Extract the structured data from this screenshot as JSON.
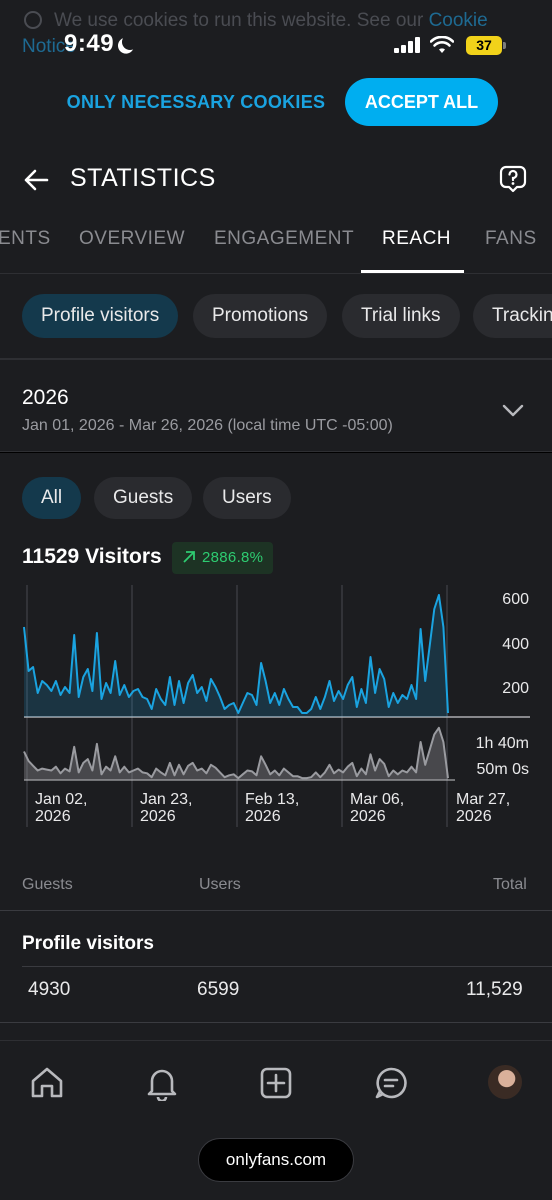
{
  "status_bar": {
    "time": "9:49",
    "battery": "37"
  },
  "cookie": {
    "text": "We use cookies to run this website. See our ",
    "link": "Cookie",
    "link2": "Notice",
    "necessary_label": "ONLY NECESSARY COOKIES",
    "accept_label": "ACCEPT ALL"
  },
  "header": {
    "title": "STATISTICS"
  },
  "tabs": [
    {
      "label": "ENTS"
    },
    {
      "label": "OVERVIEW"
    },
    {
      "label": "ENGAGEMENT"
    },
    {
      "label": "REACH",
      "active": true
    },
    {
      "label": "FANS"
    }
  ],
  "chips": [
    {
      "label": "Profile visitors",
      "active": true
    },
    {
      "label": "Promotions"
    },
    {
      "label": "Trial links"
    },
    {
      "label": "Tracking"
    }
  ],
  "period": {
    "year": "2026",
    "range": "Jan 01, 2026 - Mar 26, 2026 (local time UTC -05:00)"
  },
  "filters": [
    {
      "label": "All",
      "active": true
    },
    {
      "label": "Guests"
    },
    {
      "label": "Users"
    }
  ],
  "summary": {
    "visitors": "11529 Visitors",
    "change": "2886.8%"
  },
  "colors": {
    "accent": "#00aef0",
    "series_visitors": "#1aa3e0",
    "series_time": "#9a9ba0",
    "positive": "#2ecc71"
  },
  "chart_data": {
    "type": "line",
    "x_ticks": [
      {
        "line1": "Jan 02,",
        "line2": "2026"
      },
      {
        "line1": "Jan 23,",
        "line2": "2026"
      },
      {
        "line1": "Feb 13,",
        "line2": "2026"
      },
      {
        "line1": "Mar 06,",
        "line2": "2026"
      },
      {
        "line1": "Mar 27,",
        "line2": "2026"
      }
    ],
    "top": {
      "y_ticks": [
        "600",
        "400",
        "200"
      ],
      "ylim": [
        0,
        600
      ],
      "series": [
        {
          "values": [
            450,
            230,
            250,
            120,
            180,
            160,
            130,
            180,
            110,
            150,
            120,
            410,
            100,
            200,
            240,
            130,
            420,
            90,
            170,
            120,
            280,
            110,
            160,
            100,
            130,
            140,
            100,
            90,
            40,
            140,
            90,
            60,
            200,
            60,
            180,
            70,
            170,
            210,
            120,
            150,
            80,
            190,
            150,
            100,
            40,
            60,
            70,
            20,
            70,
            120,
            110,
            60,
            270,
            180,
            70,
            120,
            60,
            140,
            90,
            50,
            50,
            20,
            20,
            40,
            100,
            40,
            100,
            180,
            80,
            130,
            90,
            160,
            200,
            50,
            140,
            70,
            300,
            120,
            240,
            190,
            50,
            120,
            70,
            110,
            90,
            160,
            90,
            440,
            180,
            360,
            540,
            610,
            450,
            20
          ]
        }
      ]
    },
    "bottom": {
      "y_ticks": [
        "1h 40m",
        "50m 0s"
      ],
      "series": [
        {
          "values": [
            0.3,
            0.2,
            0.15,
            0.1,
            0.12,
            0.11,
            0.1,
            0.14,
            0.07,
            0.12,
            0.09,
            0.35,
            0.08,
            0.18,
            0.22,
            0.1,
            0.38,
            0.06,
            0.14,
            0.1,
            0.25,
            0.08,
            0.14,
            0.08,
            0.1,
            0.12,
            0.08,
            0.07,
            0.03,
            0.12,
            0.08,
            0.05,
            0.18,
            0.05,
            0.16,
            0.06,
            0.15,
            0.18,
            0.1,
            0.12,
            0.07,
            0.16,
            0.13,
            0.08,
            0.03,
            0.05,
            0.06,
            0.02,
            0.06,
            0.1,
            0.09,
            0.05,
            0.25,
            0.16,
            0.06,
            0.1,
            0.05,
            0.12,
            0.08,
            0.04,
            0.04,
            0.02,
            0.02,
            0.03,
            0.08,
            0.03,
            0.08,
            0.16,
            0.07,
            0.11,
            0.08,
            0.14,
            0.18,
            0.04,
            0.12,
            0.06,
            0.27,
            0.1,
            0.22,
            0.17,
            0.04,
            0.1,
            0.06,
            0.1,
            0.08,
            0.14,
            0.08,
            0.4,
            0.16,
            0.32,
            0.48,
            0.55,
            0.4,
            0.02
          ]
        }
      ]
    }
  },
  "table": {
    "columns": [
      "Guests",
      "Users",
      "Total"
    ],
    "row_title": "Profile visitors",
    "row": [
      "4930",
      "6599",
      "11,529"
    ]
  },
  "bottom_nav": {
    "url": "onlyfans.com"
  }
}
